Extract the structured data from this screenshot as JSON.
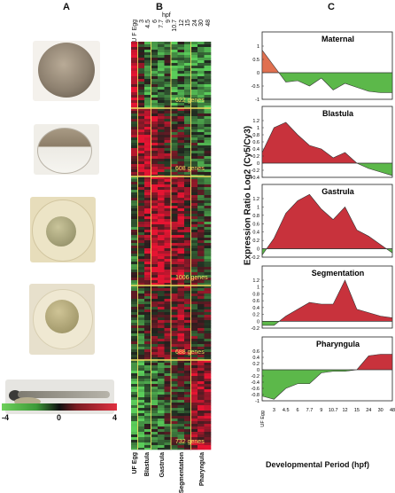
{
  "panels": {
    "a": "A",
    "b": "B",
    "c": "C"
  },
  "color_scale": {
    "min": "-4",
    "mid": "0",
    "max": "4"
  },
  "heatmap": {
    "hpf_label": "hpf",
    "top_columns": [
      "U F Egg",
      "3",
      "4.5",
      "6",
      "7.7",
      "9",
      "10.7",
      "12",
      "15",
      "24",
      "30",
      "48"
    ],
    "gene_clusters": [
      "622 genes",
      "608 genes",
      "1006 genes",
      "688 genes",
      "732 genes"
    ],
    "stage_labels": [
      "UF Egg",
      "Blastula",
      "Gastrula",
      "Segmentation",
      "Pharyngula"
    ]
  },
  "embryo_images": [
    "egg-photo",
    "blastula-photo",
    "gastrula-photo",
    "segmentation-photo",
    "pharyngula-photo"
  ],
  "colors": {
    "red": "#c8323c",
    "green": "#5cb84a",
    "orange": "#e07050",
    "highlight": "#f0e060"
  },
  "chart_data": {
    "type": "area",
    "x_labels": [
      "UF Egg",
      "3",
      "4.5",
      "6",
      "7.7",
      "9",
      "10.7",
      "12",
      "15",
      "24",
      "30",
      "48"
    ],
    "ylabel": "Expression Ratio Log2 (Cy5/Cy3)",
    "xlabel": "Developmental Period (hpf)",
    "charts": [
      {
        "title": "Maternal",
        "ylim": [
          -1,
          1
        ],
        "yticks": [
          "1",
          "0.5",
          "0",
          "-0.5",
          "-1"
        ],
        "values": [
          0.85,
          0.25,
          -0.35,
          -0.3,
          -0.5,
          -0.2,
          -0.65,
          -0.4,
          -0.55,
          -0.7,
          -0.75,
          -0.75
        ]
      },
      {
        "title": "Blastula",
        "ylim": [
          -0.4,
          1.2
        ],
        "yticks": [
          "1.2",
          "1",
          "0.8",
          "0.6",
          "0.4",
          "0.2",
          "0",
          "-0.2",
          "-0.4"
        ],
        "values": [
          0.3,
          1.0,
          1.15,
          0.8,
          0.5,
          0.4,
          0.15,
          0.3,
          0.0,
          -0.15,
          -0.25,
          -0.35
        ]
      },
      {
        "title": "Gastrula",
        "ylim": [
          -0.2,
          1.2
        ],
        "yticks": [
          "1.2",
          "1",
          "0.8",
          "0.6",
          "0.4",
          "0.2",
          "0",
          "-0.2"
        ],
        "values": [
          -0.15,
          0.25,
          0.85,
          1.15,
          1.3,
          0.95,
          0.7,
          1.0,
          0.45,
          0.3,
          0.1,
          -0.1
        ]
      },
      {
        "title": "Segmentation",
        "ylim": [
          -0.2,
          1.2
        ],
        "yticks": [
          "1.2",
          "1",
          "0.8",
          "0.6",
          "0.4",
          "0.2",
          "0",
          "-0.2"
        ],
        "values": [
          -0.12,
          -0.12,
          0.15,
          0.35,
          0.55,
          0.5,
          0.5,
          1.2,
          0.35,
          0.25,
          0.15,
          0.1
        ]
      },
      {
        "title": "Pharyngula",
        "ylim": [
          -1,
          0.6
        ],
        "yticks": [
          "0.6",
          "0.4",
          "0.2",
          "0",
          "-0.2",
          "-0.4",
          "-0.6",
          "-0.8",
          "-1"
        ],
        "values": [
          -0.85,
          -0.95,
          -0.6,
          -0.45,
          -0.45,
          -0.1,
          -0.05,
          -0.05,
          0.0,
          0.45,
          0.5,
          0.5
        ]
      }
    ]
  }
}
